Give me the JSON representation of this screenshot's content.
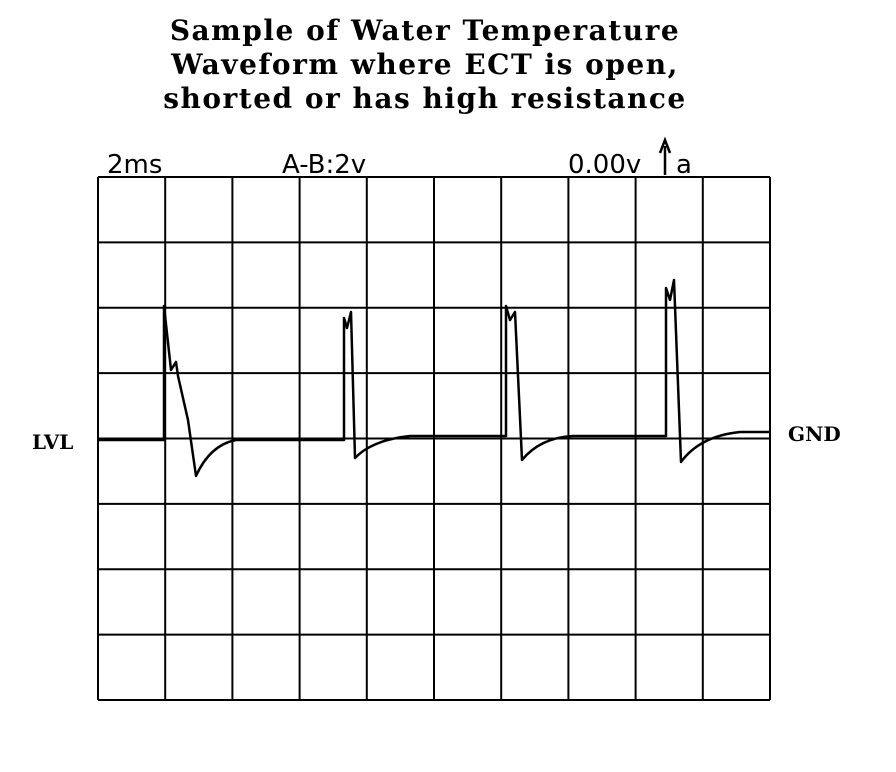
{
  "title": {
    "lines": [
      "Sample of Water Temperature",
      "Waveform where ECT is open,",
      "shorted or has high resistance"
    ]
  },
  "scope": {
    "timebase": "2ms",
    "channel": "A-B:2v",
    "trigger_level": "0.00v",
    "trigger_channel": "a",
    "left_marker": "LVL",
    "right_marker": "GND",
    "grid": {
      "columns": 10,
      "rows": 8
    }
  },
  "colors": {
    "ink": "#000000",
    "background": "#ffffff"
  }
}
